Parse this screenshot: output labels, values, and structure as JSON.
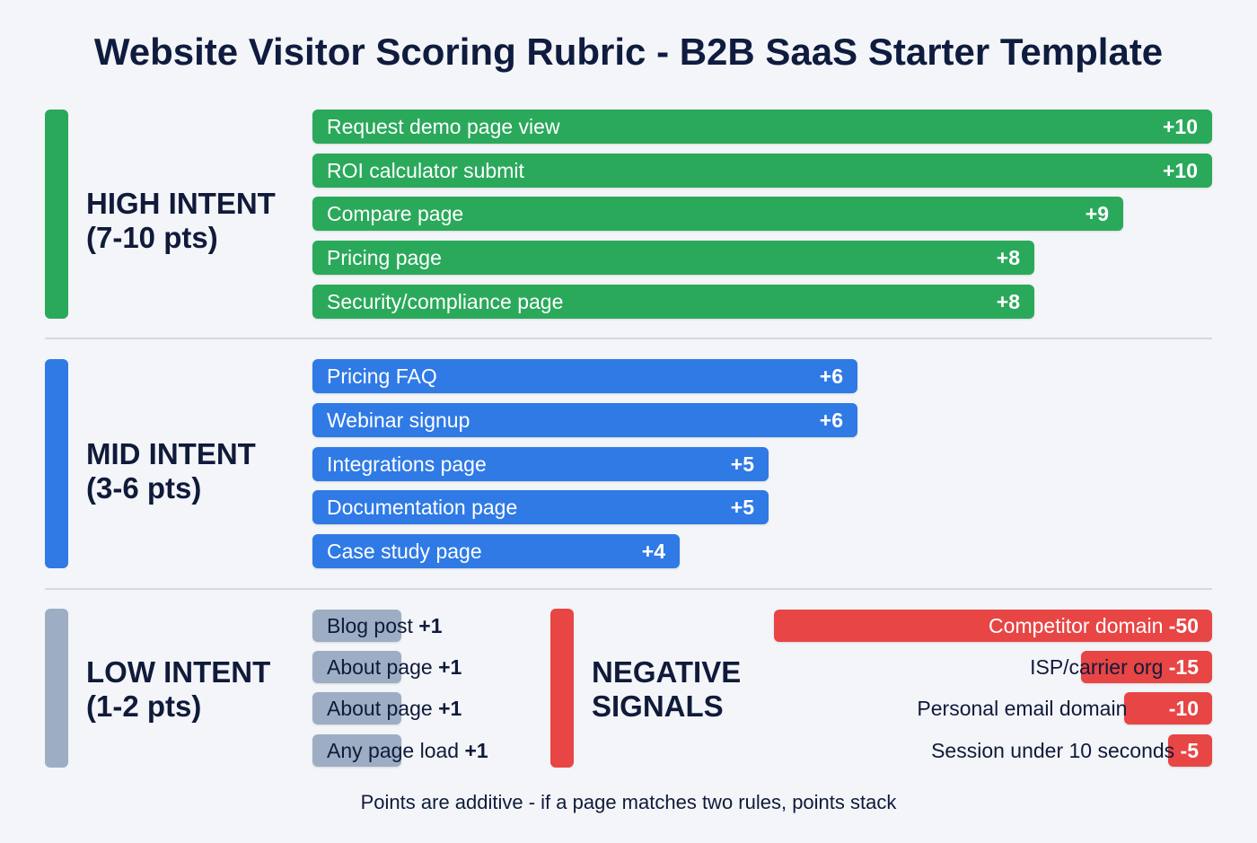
{
  "chart_data": {
    "type": "bar",
    "title": "Website Visitor Scoring Rubric - B2B SaaS Starter Template",
    "footer": "Points are additive - if a page matches two rules, points stack",
    "colors": {
      "high": "#2aa95b",
      "mid": "#2f7ae5",
      "low": "#9daec4",
      "negative": "#e84545"
    },
    "groups": [
      {
        "key": "high",
        "label_line1": "HIGH INTENT",
        "label_line2": "(7-10 pts)",
        "items": [
          {
            "label": "Request demo page view",
            "value": 10,
            "display": "+10"
          },
          {
            "label": "ROI calculator submit",
            "value": 10,
            "display": "+10"
          },
          {
            "label": "Compare page",
            "value": 9,
            "display": "+9"
          },
          {
            "label": "Pricing page",
            "value": 8,
            "display": "+8"
          },
          {
            "label": "Security/compliance page",
            "value": 8,
            "display": "+8"
          }
        ]
      },
      {
        "key": "mid",
        "label_line1": "MID INTENT",
        "label_line2": "(3-6 pts)",
        "items": [
          {
            "label": "Pricing FAQ",
            "value": 6,
            "display": "+6"
          },
          {
            "label": "Webinar signup",
            "value": 6,
            "display": "+6"
          },
          {
            "label": "Integrations page",
            "value": 5,
            "display": "+5"
          },
          {
            "label": "Documentation page",
            "value": 5,
            "display": "+5"
          },
          {
            "label": "Case study page",
            "value": 4,
            "display": "+4"
          }
        ]
      },
      {
        "key": "low",
        "label_line1": "LOW INTENT",
        "label_line2": "(1-2 pts)",
        "items": [
          {
            "label": "Blog post",
            "value": 1,
            "display": "+1"
          },
          {
            "label": "About page",
            "value": 1,
            "display": "+1"
          },
          {
            "label": "About page",
            "value": 1,
            "display": "+1"
          },
          {
            "label": "Any page load",
            "value": 1,
            "display": "+1"
          }
        ]
      },
      {
        "key": "negative",
        "label_line1": "NEGATIVE",
        "label_line2": "SIGNALS",
        "items": [
          {
            "label": "Competitor domain",
            "value": -50,
            "display": "-50"
          },
          {
            "label": "ISP/carrier org",
            "value": -15,
            "display": "-15"
          },
          {
            "label": "Personal email domain",
            "value": -10,
            "display": "-10"
          },
          {
            "label": "Session under 10 seconds",
            "value": -5,
            "display": "-5"
          }
        ]
      }
    ]
  }
}
